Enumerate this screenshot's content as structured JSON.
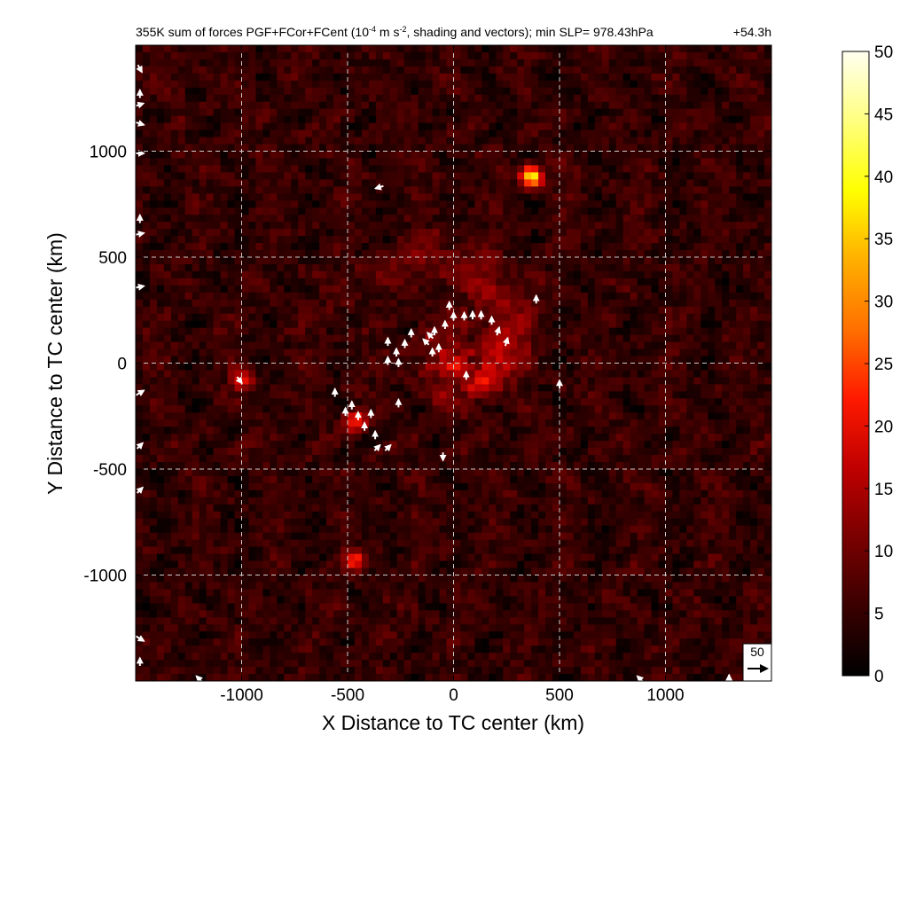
{
  "chart_data": {
    "type": "heatmap",
    "title_parts": {
      "pre": "355K sum of forces PGF+FCor+FCent (10",
      "exp1": "-4",
      "mid": " m s",
      "exp2": "-2",
      "post": ", shading and vectors); min SLP= 978.43hPa"
    },
    "time_label": "+54.3h",
    "xlabel": "X Distance to TC center (km)",
    "ylabel": "Y Distance to TC center (km)",
    "xlim": [
      -1500,
      1500
    ],
    "ylim": [
      -1500,
      1500
    ],
    "x_ticks": [
      -1000,
      -500,
      0,
      500,
      1000
    ],
    "y_ticks": [
      1000,
      500,
      0,
      -500,
      -1000
    ],
    "x_tick_labels": [
      "-1000",
      "-500",
      "0",
      "500",
      "1000"
    ],
    "y_tick_labels": [
      "1000",
      "500",
      "0",
      "-500",
      "-1000"
    ],
    "grid": true,
    "colorbar": {
      "min": 0,
      "max": 50,
      "ticks": [
        0,
        5,
        10,
        15,
        20,
        25,
        30,
        35,
        40,
        45,
        50
      ],
      "tick_labels": [
        "0",
        "5",
        "10",
        "15",
        "20",
        "25",
        "30",
        "35",
        "40",
        "45",
        "50"
      ],
      "stops": [
        "#000000",
        "#3a0000",
        "#7a0000",
        "#c00000",
        "#ff1a00",
        "#ff7000",
        "#ffb000",
        "#ffff00",
        "#ffff80",
        "#fffff0"
      ]
    },
    "reference_vector": {
      "label": "50",
      "magnitude": 50
    },
    "field_features": {
      "background_level": 6,
      "spiral_band_peak": 18,
      "core_peak": 24,
      "hot_spots": [
        {
          "x": 370,
          "y": 880,
          "value": 35
        },
        {
          "x": -460,
          "y": -270,
          "value": 20
        },
        {
          "x": -1000,
          "y": -80,
          "value": 16
        },
        {
          "x": -470,
          "y": -930,
          "value": 16
        }
      ]
    },
    "vectors": [
      {
        "x": -90,
        "y": 150,
        "u": 0,
        "v": 1
      },
      {
        "x": -40,
        "y": 180,
        "u": 0,
        "v": 1
      },
      {
        "x": 0,
        "y": 220,
        "u": 0,
        "v": 1
      },
      {
        "x": 50,
        "y": 220,
        "u": 0,
        "v": 1
      },
      {
        "x": 90,
        "y": 225,
        "u": 0,
        "v": 1
      },
      {
        "x": 130,
        "y": 225,
        "u": 0,
        "v": 1
      },
      {
        "x": 180,
        "y": 200,
        "u": 0,
        "v": 1
      },
      {
        "x": 210,
        "y": 150,
        "u": 0.3,
        "v": 1
      },
      {
        "x": 250,
        "y": 100,
        "u": 0.3,
        "v": 1
      },
      {
        "x": -110,
        "y": 130,
        "u": -0.7,
        "v": 0.7
      },
      {
        "x": -130,
        "y": 100,
        "u": -0.7,
        "v": 0.7
      },
      {
        "x": -70,
        "y": 70,
        "u": 0,
        "v": 1
      },
      {
        "x": -100,
        "y": 50,
        "u": 0,
        "v": 1
      },
      {
        "x": -230,
        "y": 90,
        "u": 0,
        "v": 1
      },
      {
        "x": -270,
        "y": 50,
        "u": 0,
        "v": 1
      },
      {
        "x": -310,
        "y": 100,
        "u": 0,
        "v": 1
      },
      {
        "x": -310,
        "y": 10,
        "u": 0,
        "v": 1
      },
      {
        "x": -260,
        "y": 0,
        "u": 0,
        "v": 1
      },
      {
        "x": -200,
        "y": 140,
        "u": 0,
        "v": 1
      },
      {
        "x": -20,
        "y": 270,
        "u": 0,
        "v": 1
      },
      {
        "x": 60,
        "y": -60,
        "u": 0,
        "v": 1
      },
      {
        "x": 500,
        "y": -100,
        "u": 0,
        "v": 1
      },
      {
        "x": 390,
        "y": 300,
        "u": 0,
        "v": 1
      },
      {
        "x": -560,
        "y": -140,
        "u": 0,
        "v": 1
      },
      {
        "x": -510,
        "y": -230,
        "u": 0,
        "v": 1
      },
      {
        "x": -480,
        "y": -200,
        "u": 0,
        "v": 1
      },
      {
        "x": -450,
        "y": -250,
        "u": 0,
        "v": 1
      },
      {
        "x": -390,
        "y": -240,
        "u": 0,
        "v": 1
      },
      {
        "x": -260,
        "y": -190,
        "u": 0,
        "v": 1
      },
      {
        "x": -420,
        "y": -300,
        "u": 0,
        "v": 1
      },
      {
        "x": -370,
        "y": -340,
        "u": 0,
        "v": 1
      },
      {
        "x": -360,
        "y": -400,
        "u": 0.7,
        "v": 0.7
      },
      {
        "x": -310,
        "y": -400,
        "u": 0.7,
        "v": 0.7
      },
      {
        "x": -50,
        "y": -440,
        "u": 0,
        "v": -1
      },
      {
        "x": -1010,
        "y": -80,
        "u": 0.6,
        "v": -0.8
      },
      {
        "x": -350,
        "y": 830,
        "u": -1,
        "v": -0.3
      },
      {
        "x": -1480,
        "y": 1390,
        "u": 0.5,
        "v": -0.9
      },
      {
        "x": -1480,
        "y": 1270,
        "u": 0,
        "v": 1
      },
      {
        "x": -1480,
        "y": 1220,
        "u": 0.9,
        "v": 0.3
      },
      {
        "x": -1480,
        "y": 1130,
        "u": 1,
        "v": -0.3
      },
      {
        "x": -1480,
        "y": 990,
        "u": 1,
        "v": 0
      },
      {
        "x": -1480,
        "y": 680,
        "u": 0,
        "v": 1
      },
      {
        "x": -1480,
        "y": 610,
        "u": 1,
        "v": 0.2
      },
      {
        "x": -1480,
        "y": 360,
        "u": 1,
        "v": 0.2
      },
      {
        "x": -1480,
        "y": -140,
        "u": 1,
        "v": 0.6
      },
      {
        "x": -1480,
        "y": -390,
        "u": 0.7,
        "v": 0.7
      },
      {
        "x": -1480,
        "y": -600,
        "u": 0.7,
        "v": 0.7
      },
      {
        "x": -1480,
        "y": -1300,
        "u": 1,
        "v": -0.6
      },
      {
        "x": -1480,
        "y": -1410,
        "u": 0,
        "v": 1
      },
      {
        "x": -1200,
        "y": -1490,
        "u": -0.7,
        "v": 0.7
      },
      {
        "x": 880,
        "y": -1490,
        "u": -0.7,
        "v": 0.7
      },
      {
        "x": 1300,
        "y": -1490,
        "u": 0,
        "v": 1
      }
    ]
  }
}
